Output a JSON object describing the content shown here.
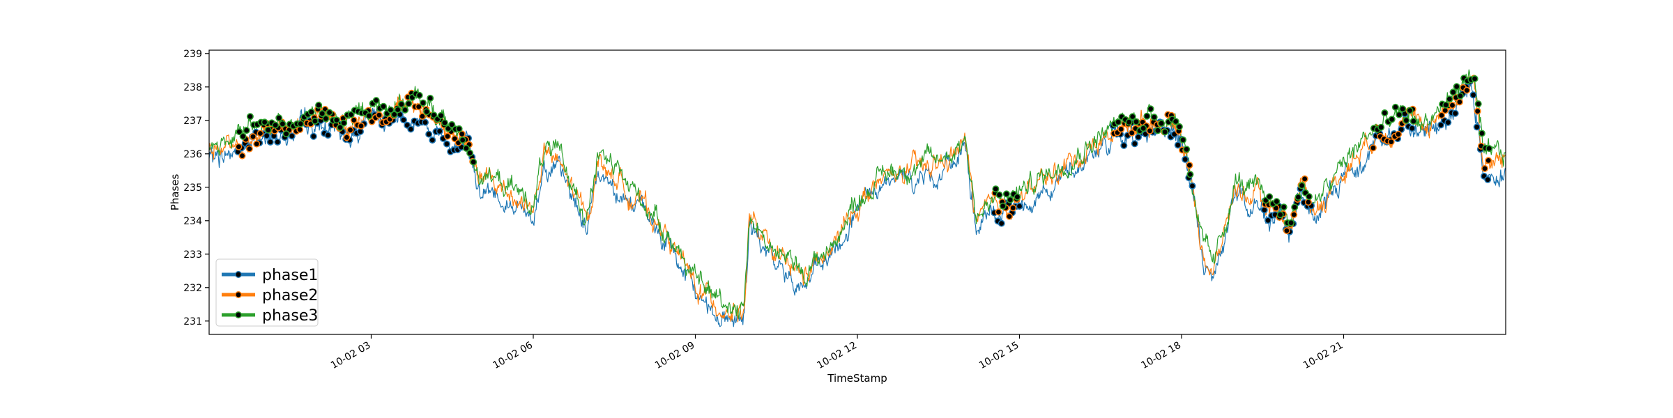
{
  "chart_data": {
    "type": "line",
    "title": "",
    "xlabel": "TimeStamp",
    "ylabel": "Phases",
    "xlim": [
      "10-02 00:00",
      "10-02 24:00"
    ],
    "ylim": [
      230.6,
      239.1
    ],
    "grid": false,
    "legend_position": "lower-left",
    "xticks": [
      {
        "t": 3,
        "label": "10-02 03"
      },
      {
        "t": 6,
        "label": "10-02 06"
      },
      {
        "t": 9,
        "label": "10-02 09"
      },
      {
        "t": 12,
        "label": "10-02 12"
      },
      {
        "t": 15,
        "label": "10-02 15"
      },
      {
        "t": 18,
        "label": "10-02 18"
      },
      {
        "t": 21,
        "label": "10-02 21"
      }
    ],
    "yticks": [
      231,
      232,
      233,
      234,
      235,
      236,
      237,
      238,
      239
    ],
    "series": [
      {
        "name": "phase1",
        "color": "#1f77b4",
        "offset": -0.22
      },
      {
        "name": "phase2",
        "color": "#ff7f0e",
        "offset": 0.02
      },
      {
        "name": "phase3",
        "color": "#2ca02c",
        "offset": 0.18
      }
    ],
    "base_profile": {
      "hours": [
        0,
        0.3,
        0.6,
        1.0,
        1.5,
        2.0,
        2.5,
        3.0,
        3.5,
        4.0,
        4.5,
        4.8,
        5.0,
        5.3,
        5.6,
        6.0,
        6.2,
        6.5,
        7.0,
        7.2,
        7.5,
        8.0,
        8.5,
        9.0,
        9.5,
        9.9,
        10.0,
        10.5,
        11.0,
        11.5,
        12.0,
        12.5,
        13.0,
        13.5,
        14.0,
        14.2,
        14.5,
        15.0,
        15.5,
        16.0,
        16.5,
        17.0,
        17.5,
        17.9,
        18.1,
        18.4,
        18.6,
        19.0,
        19.5,
        19.8,
        20.0,
        20.2,
        20.5,
        21.0,
        21.5,
        22.0,
        22.5,
        23.0,
        23.4,
        23.6,
        24.0
      ],
      "values": [
        236.1,
        236.2,
        236.4,
        236.6,
        236.9,
        237.0,
        236.8,
        237.2,
        237.4,
        237.3,
        236.5,
        236.2,
        235.3,
        235.0,
        234.8,
        234.3,
        236.0,
        235.6,
        234.0,
        235.8,
        235.3,
        234.5,
        233.5,
        232.0,
        231.4,
        231.3,
        234.0,
        232.8,
        232.3,
        233.0,
        234.5,
        235.2,
        235.5,
        235.6,
        236.3,
        234.0,
        234.3,
        234.7,
        235.2,
        235.8,
        236.4,
        236.8,
        237.0,
        236.8,
        236.0,
        233.0,
        232.4,
        235.0,
        234.5,
        234.3,
        233.7,
        235.0,
        234.3,
        235.5,
        236.5,
        236.9,
        236.8,
        237.5,
        238.3,
        235.6,
        235.8
      ]
    },
    "highlighted_ranges": [
      {
        "start": 0.5,
        "end": 4.9
      },
      {
        "start": 14.5,
        "end": 15.0
      },
      {
        "start": 16.7,
        "end": 18.2
      },
      {
        "start": 19.5,
        "end": 20.0
      },
      {
        "start": 20.0,
        "end": 20.4
      },
      {
        "start": 21.5,
        "end": 22.3
      },
      {
        "start": 22.8,
        "end": 23.7
      }
    ]
  }
}
